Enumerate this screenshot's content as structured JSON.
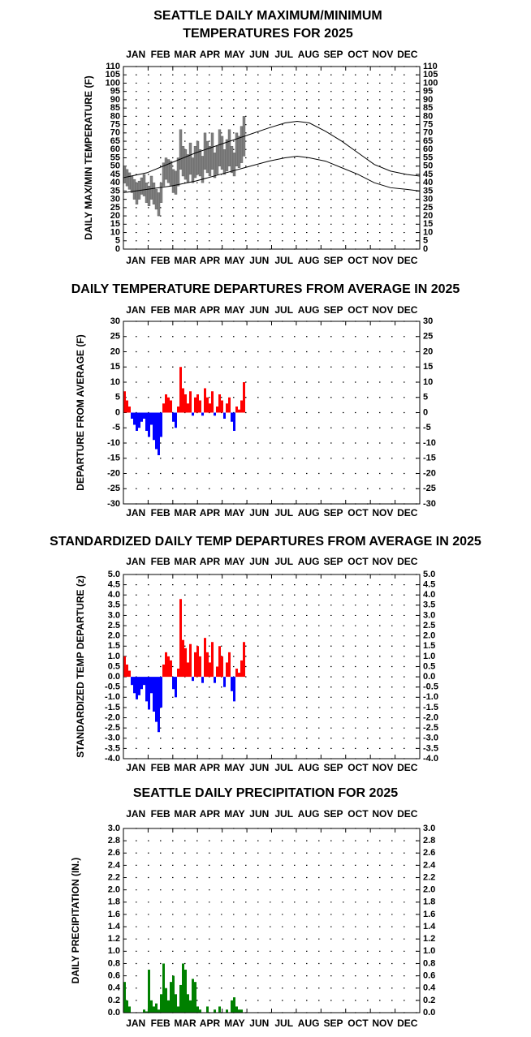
{
  "chart_data": [
    {
      "type": "range",
      "title_lines": [
        "SEATTLE DAILY MAXIMUM/MINIMUM",
        "TEMPERATURES FOR 2025"
      ],
      "y_label": "DAILY MAX/MIN TEMPERATURE (F)",
      "months": [
        "JAN",
        "FEB",
        "MAR",
        "APR",
        "MAY",
        "JUN",
        "JUL",
        "AUG",
        "SEP",
        "OCT",
        "NOV",
        "DEC"
      ],
      "xlim": [
        1,
        366
      ],
      "ylim": [
        0,
        110
      ],
      "yticks": [
        0,
        5,
        10,
        15,
        20,
        25,
        30,
        35,
        40,
        45,
        50,
        55,
        60,
        65,
        70,
        75,
        80,
        85,
        90,
        95,
        100,
        105,
        110
      ],
      "grid": true,
      "color": "#808080",
      "normal_color": "#000000",
      "normal_x": [
        1,
        30,
        60,
        90,
        120,
        150,
        180,
        200,
        215,
        230,
        250,
        270,
        290,
        310,
        330,
        350,
        366
      ],
      "normal_high": [
        43,
        46,
        52,
        58,
        63,
        68,
        73,
        76,
        77,
        76,
        71,
        65,
        58,
        51,
        47,
        45,
        44
      ],
      "normal_low": [
        34,
        36,
        38,
        41,
        45,
        49,
        53,
        55,
        56,
        55,
        53,
        49,
        45,
        40,
        37,
        36,
        35
      ],
      "x": [
        1,
        4,
        7,
        10,
        13,
        16,
        19,
        22,
        25,
        28,
        31,
        34,
        37,
        40,
        43,
        46,
        49,
        52,
        55,
        58,
        61,
        64,
        67,
        70,
        73,
        76,
        79,
        82,
        85,
        88,
        91,
        94,
        97,
        100,
        103,
        106,
        109,
        112,
        115,
        118,
        121,
        124,
        127,
        130,
        133,
        136,
        139,
        142,
        145,
        148
      ],
      "high": [
        50,
        48,
        46,
        44,
        42,
        40,
        41,
        43,
        45,
        40,
        38,
        44,
        40,
        36,
        34,
        40,
        52,
        55,
        54,
        53,
        48,
        47,
        55,
        72,
        62,
        60,
        57,
        64,
        55,
        62,
        65,
        60,
        56,
        70,
        65,
        62,
        70,
        58,
        62,
        72,
        68,
        60,
        66,
        72,
        62,
        58,
        70,
        68,
        74,
        80
      ],
      "low": [
        40,
        38,
        36,
        34,
        30,
        27,
        30,
        33,
        32,
        28,
        26,
        30,
        27,
        24,
        20,
        28,
        38,
        42,
        40,
        38,
        34,
        33,
        38,
        48,
        44,
        42,
        40,
        45,
        40,
        43,
        45,
        44,
        40,
        48,
        46,
        44,
        48,
        43,
        45,
        50,
        48,
        45,
        47,
        50,
        46,
        44,
        50,
        49,
        52,
        56
      ]
    },
    {
      "type": "bar",
      "title": "DAILY TEMPERATURE DEPARTURES FROM AVERAGE IN 2025",
      "y_label": "DEPARTURE FROM AVERAGE (F)",
      "months": [
        "JAN",
        "FEB",
        "MAR",
        "APR",
        "MAY",
        "JUN",
        "JUL",
        "AUG",
        "SEP",
        "OCT",
        "NOV",
        "DEC"
      ],
      "xlim": [
        1,
        366
      ],
      "ylim": [
        -30,
        30
      ],
      "yticks": [
        -30,
        -25,
        -20,
        -15,
        -10,
        -5,
        0,
        5,
        10,
        15,
        20,
        25,
        30
      ],
      "grid": true,
      "pos_color": "#ff0000",
      "neg_color": "#0000ff",
      "x": [
        1,
        4,
        7,
        10,
        13,
        16,
        19,
        22,
        25,
        28,
        31,
        34,
        37,
        40,
        43,
        46,
        49,
        52,
        55,
        58,
        61,
        64,
        67,
        70,
        73,
        76,
        79,
        82,
        85,
        88,
        91,
        94,
        97,
        100,
        103,
        106,
        109,
        112,
        115,
        118,
        121,
        124,
        127,
        130,
        133,
        136,
        139,
        142,
        145,
        148
      ],
      "values": [
        7,
        4,
        2,
        -2,
        -4,
        -6,
        -5,
        -3,
        -2,
        -6,
        -8,
        -4,
        -9,
        -12,
        -14,
        -8,
        3,
        6,
        5,
        4,
        -3,
        -5,
        2,
        15,
        8,
        6,
        3,
        7,
        -1,
        5,
        6,
        4,
        -1,
        8,
        5,
        3,
        7,
        -1,
        2,
        6,
        4,
        -2,
        3,
        5,
        -3,
        -6,
        2,
        1,
        4,
        10
      ]
    },
    {
      "type": "bar",
      "title": "STANDARDIZED DAILY TEMP DEPARTURES FROM AVERAGE IN 2025",
      "y_label": "STANDARDIZED TEMP DEPARTURE (z)",
      "months": [
        "JAN",
        "FEB",
        "MAR",
        "APR",
        "MAY",
        "JUN",
        "JUL",
        "AUG",
        "SEP",
        "OCT",
        "NOV",
        "DEC"
      ],
      "xlim": [
        1,
        366
      ],
      "ylim": [
        -4,
        5
      ],
      "yticks": [
        {
          "value": -4,
          "label": "-4.0"
        },
        -3.5,
        {
          "value": -3,
          "label": "-3.0"
        },
        -2.5,
        {
          "value": -2,
          "label": "-2.0"
        },
        -1.5,
        {
          "value": -1,
          "label": "-1.0"
        },
        -0.5,
        {
          "value": 0,
          "label": "0.0"
        },
        0.5,
        {
          "value": 1,
          "label": "1.0"
        },
        1.5,
        {
          "value": 2,
          "label": "2.0"
        },
        2.5,
        {
          "value": 3,
          "label": "3.0"
        },
        3.5,
        {
          "value": 4,
          "label": "4.0"
        },
        4.5,
        {
          "value": 5,
          "label": "5.0"
        }
      ],
      "grid": true,
      "pos_color": "#ff0000",
      "neg_color": "#0000ff",
      "x": [
        1,
        4,
        7,
        10,
        13,
        16,
        19,
        22,
        25,
        28,
        31,
        34,
        37,
        40,
        43,
        46,
        49,
        52,
        55,
        58,
        61,
        64,
        67,
        70,
        73,
        76,
        79,
        82,
        85,
        88,
        91,
        94,
        97,
        100,
        103,
        106,
        109,
        112,
        115,
        118,
        121,
        124,
        127,
        130,
        133,
        136,
        139,
        142,
        145,
        148
      ],
      "values": [
        1.0,
        0.6,
        0.3,
        -0.4,
        -0.8,
        -1.1,
        -0.9,
        -0.6,
        -0.4,
        -1.2,
        -1.6,
        -0.8,
        -1.7,
        -2.2,
        -2.7,
        -1.5,
        0.6,
        1.2,
        1.0,
        0.8,
        -0.6,
        -1.0,
        0.4,
        3.8,
        1.8,
        1.4,
        0.7,
        1.6,
        -0.2,
        1.2,
        1.5,
        1.0,
        -0.3,
        1.9,
        1.2,
        0.7,
        1.7,
        -0.3,
        0.5,
        1.5,
        1.0,
        -0.5,
        0.7,
        1.2,
        -0.7,
        -1.2,
        0.4,
        0.2,
        0.8,
        1.7
      ]
    },
    {
      "type": "bar",
      "title": "SEATTLE DAILY PRECIPITATION FOR 2025",
      "y_label": "DAILY PRECIPITATION (IN.)",
      "months": [
        "JAN",
        "FEB",
        "MAR",
        "APR",
        "MAY",
        "JUN",
        "JUL",
        "AUG",
        "SEP",
        "OCT",
        "NOV",
        "DEC"
      ],
      "xlim": [
        1,
        366
      ],
      "ylim": [
        0,
        3
      ],
      "yticks": [
        {
          "value": 0,
          "label": "0.0"
        },
        0.2,
        0.4,
        0.6,
        0.8,
        {
          "value": 1,
          "label": "1.0"
        },
        1.2,
        1.4,
        1.6,
        1.8,
        {
          "value": 2,
          "label": "2.0"
        },
        2.2,
        2.4,
        2.6,
        2.8,
        {
          "value": 3,
          "label": "3.0"
        }
      ],
      "grid": true,
      "pos_color": "#008000",
      "neg_color": "#008000",
      "x": [
        1,
        4,
        7,
        10,
        13,
        16,
        19,
        22,
        25,
        28,
        31,
        34,
        37,
        40,
        43,
        46,
        49,
        52,
        55,
        58,
        61,
        64,
        67,
        70,
        73,
        76,
        79,
        82,
        85,
        88,
        91,
        94,
        97,
        100,
        103,
        106,
        109,
        112,
        115,
        118,
        121,
        124,
        127,
        130,
        133,
        136,
        139,
        142,
        145,
        148
      ],
      "values": [
        0.5,
        0.2,
        0.1,
        0,
        0,
        0,
        0,
        0,
        0.05,
        0.02,
        0.7,
        0.2,
        0.1,
        0.15,
        0.05,
        0.3,
        0.8,
        0.4,
        0.2,
        0.5,
        0.6,
        0.3,
        0.1,
        0.45,
        0.8,
        0.7,
        0.3,
        0.2,
        0.55,
        0.5,
        0.1,
        0.05,
        0,
        0,
        0.1,
        0,
        0,
        0.05,
        0,
        0.1,
        0,
        0,
        0.05,
        0,
        0.2,
        0.25,
        0.1,
        0.05,
        0.05,
        0
      ]
    }
  ]
}
